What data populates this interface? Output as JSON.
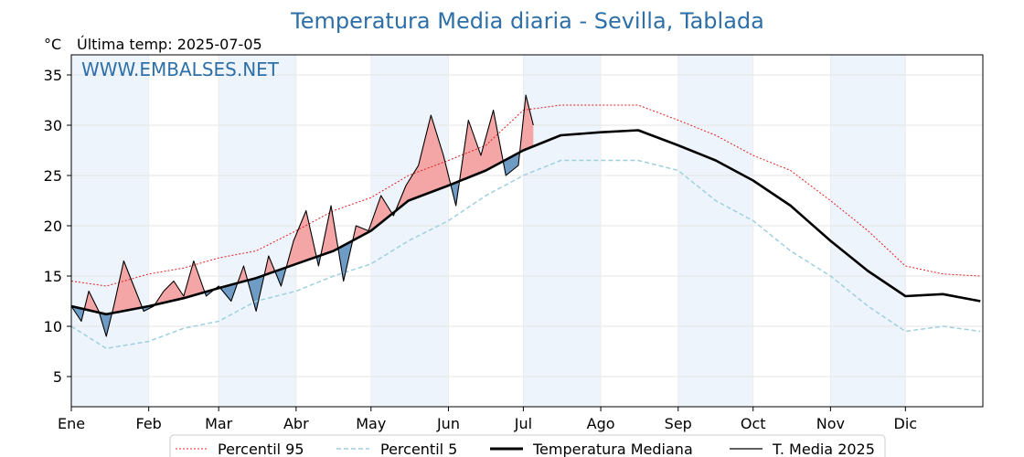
{
  "chart_data": {
    "type": "line",
    "title": "Temperatura Media diaria - Sevilla, Tablada",
    "unit": "°C",
    "last_temp_label": "Última temp: 2025-07-05",
    "watermark": "WWW.EMBALSES.NET",
    "ylim": [
      2,
      37
    ],
    "yticks": [
      5,
      10,
      15,
      20,
      25,
      30,
      35
    ],
    "months": [
      "Ene",
      "Feb",
      "Mar",
      "Abr",
      "May",
      "Jun",
      "Jul",
      "Ago",
      "Sep",
      "Oct",
      "Nov",
      "Dic"
    ],
    "grid": true,
    "legend_position": "bottom",
    "colors": {
      "p95": "#e02020",
      "p5": "#9fd0e0",
      "median": "#000000",
      "year": "#000000",
      "above_fill": "#f4a6a6",
      "below_fill": "#6f9cc4",
      "band": "#eef4fb",
      "title": "#2e6fa7"
    },
    "series": [
      {
        "name": "Percentil 95",
        "style": "dotted-red",
        "x": [
          1,
          15,
          32,
          46,
          60,
          75,
          91,
          106,
          121,
          136,
          152,
          167,
          182,
          197,
          213,
          228,
          244,
          259,
          274,
          289,
          305,
          320,
          335,
          350,
          365
        ],
        "values": [
          14.5,
          14.0,
          15.2,
          15.8,
          16.8,
          17.5,
          19.5,
          21.5,
          22.8,
          25.0,
          26.5,
          28.0,
          31.5,
          32.0,
          32.0,
          32.0,
          30.5,
          29.0,
          27.0,
          25.5,
          22.5,
          19.5,
          16.0,
          15.2,
          15.0
        ]
      },
      {
        "name": "Percentil 5",
        "style": "dashed-lightblue",
        "x": [
          1,
          15,
          32,
          46,
          60,
          75,
          91,
          106,
          121,
          136,
          152,
          167,
          182,
          197,
          213,
          228,
          244,
          259,
          274,
          289,
          305,
          320,
          335,
          350,
          365
        ],
        "values": [
          10.0,
          7.8,
          8.5,
          9.8,
          10.5,
          12.5,
          13.5,
          15.0,
          16.2,
          18.5,
          20.5,
          23.0,
          25.0,
          26.5,
          26.5,
          26.5,
          25.5,
          22.5,
          20.5,
          17.5,
          15.0,
          12.0,
          9.5,
          10.0,
          9.5
        ]
      },
      {
        "name": "Temperatura Mediana",
        "style": "thick-black",
        "x": [
          1,
          15,
          32,
          46,
          60,
          75,
          91,
          106,
          121,
          136,
          152,
          167,
          182,
          197,
          213,
          228,
          244,
          259,
          274,
          289,
          305,
          320,
          335,
          350,
          365
        ],
        "values": [
          12.0,
          11.2,
          12.0,
          12.8,
          13.8,
          14.8,
          16.2,
          17.5,
          19.5,
          22.5,
          24.0,
          25.5,
          27.5,
          29.0,
          29.3,
          29.5,
          28.0,
          26.5,
          24.5,
          22.0,
          18.5,
          15.5,
          13.0,
          13.2,
          12.5
        ]
      },
      {
        "name": "T. Media 2025",
        "style": "thin-black",
        "x": [
          1,
          5,
          8,
          12,
          15,
          18,
          22,
          26,
          30,
          34,
          38,
          42,
          46,
          50,
          55,
          60,
          65,
          70,
          75,
          80,
          85,
          90,
          95,
          100,
          105,
          110,
          115,
          120,
          125,
          130,
          135,
          140,
          145,
          150,
          155,
          160,
          165,
          170,
          175,
          180,
          183,
          186
        ],
        "values": [
          12.0,
          10.5,
          13.5,
          11.5,
          9.0,
          12.0,
          16.5,
          14.0,
          11.5,
          12.0,
          13.5,
          14.5,
          13.0,
          16.5,
          13.0,
          14.0,
          12.5,
          16.0,
          11.5,
          17.0,
          14.0,
          18.5,
          21.5,
          16.0,
          22.0,
          14.5,
          20.0,
          19.5,
          23.0,
          21.0,
          24.0,
          26.0,
          31.0,
          27.0,
          22.0,
          30.5,
          27.0,
          31.5,
          25.0,
          26.0,
          33.0,
          30.0
        ]
      }
    ],
    "legend": {
      "p95": "Percentil 95",
      "p5": "Percentil 5",
      "median": "Temperatura Mediana",
      "year": "T. Media 2025"
    }
  }
}
